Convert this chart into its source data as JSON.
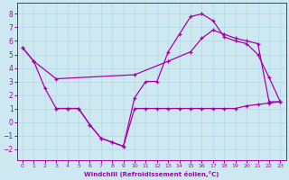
{
  "bg_color": "#cde8f0",
  "grid_color": "#b0d8e8",
  "line_color": "#aa00aa",
  "xlabel": "Windchill (Refroidissement éolien,°C)",
  "xlim": [
    -0.5,
    23.5
  ],
  "ylim": [
    -2.8,
    8.8
  ],
  "yticks": [
    -2,
    -1,
    0,
    1,
    2,
    3,
    4,
    5,
    6,
    7,
    8
  ],
  "xticks": [
    0,
    1,
    2,
    3,
    4,
    5,
    6,
    7,
    8,
    9,
    10,
    11,
    12,
    13,
    14,
    15,
    16,
    17,
    18,
    19,
    20,
    21,
    22,
    23
  ],
  "curve1_x": [
    0,
    1,
    2,
    3,
    4,
    5,
    6,
    7,
    8,
    9,
    10,
    11,
    12,
    13,
    14,
    15,
    16,
    17,
    18,
    19,
    20,
    21,
    22,
    23
  ],
  "curve1_y": [
    5.5,
    4.5,
    2.5,
    1.0,
    1.0,
    1.0,
    -0.2,
    -1.2,
    -1.5,
    -1.8,
    1.8,
    3.0,
    3.0,
    5.2,
    6.5,
    7.8,
    8.0,
    7.5,
    6.3,
    6.0,
    5.8,
    5.0,
    3.3,
    1.5
  ],
  "curve2_x": [
    0,
    1,
    3,
    10,
    13,
    15,
    16,
    17,
    18,
    19,
    20,
    21,
    22,
    23
  ],
  "curve2_y": [
    5.5,
    4.5,
    3.2,
    3.5,
    4.5,
    5.2,
    6.2,
    6.8,
    6.5,
    6.2,
    6.0,
    5.8,
    1.5,
    1.5
  ],
  "curve3_x": [
    3,
    4,
    5,
    6,
    7,
    8,
    9,
    10,
    11,
    12,
    13,
    14,
    15,
    16,
    17,
    18,
    19,
    20,
    21,
    22,
    23
  ],
  "curve3_y": [
    1.0,
    1.0,
    1.0,
    -0.2,
    -1.2,
    -1.5,
    -1.8,
    1.0,
    1.0,
    1.0,
    1.0,
    1.0,
    1.0,
    1.0,
    1.0,
    1.0,
    1.0,
    1.2,
    1.3,
    1.4,
    1.5
  ]
}
